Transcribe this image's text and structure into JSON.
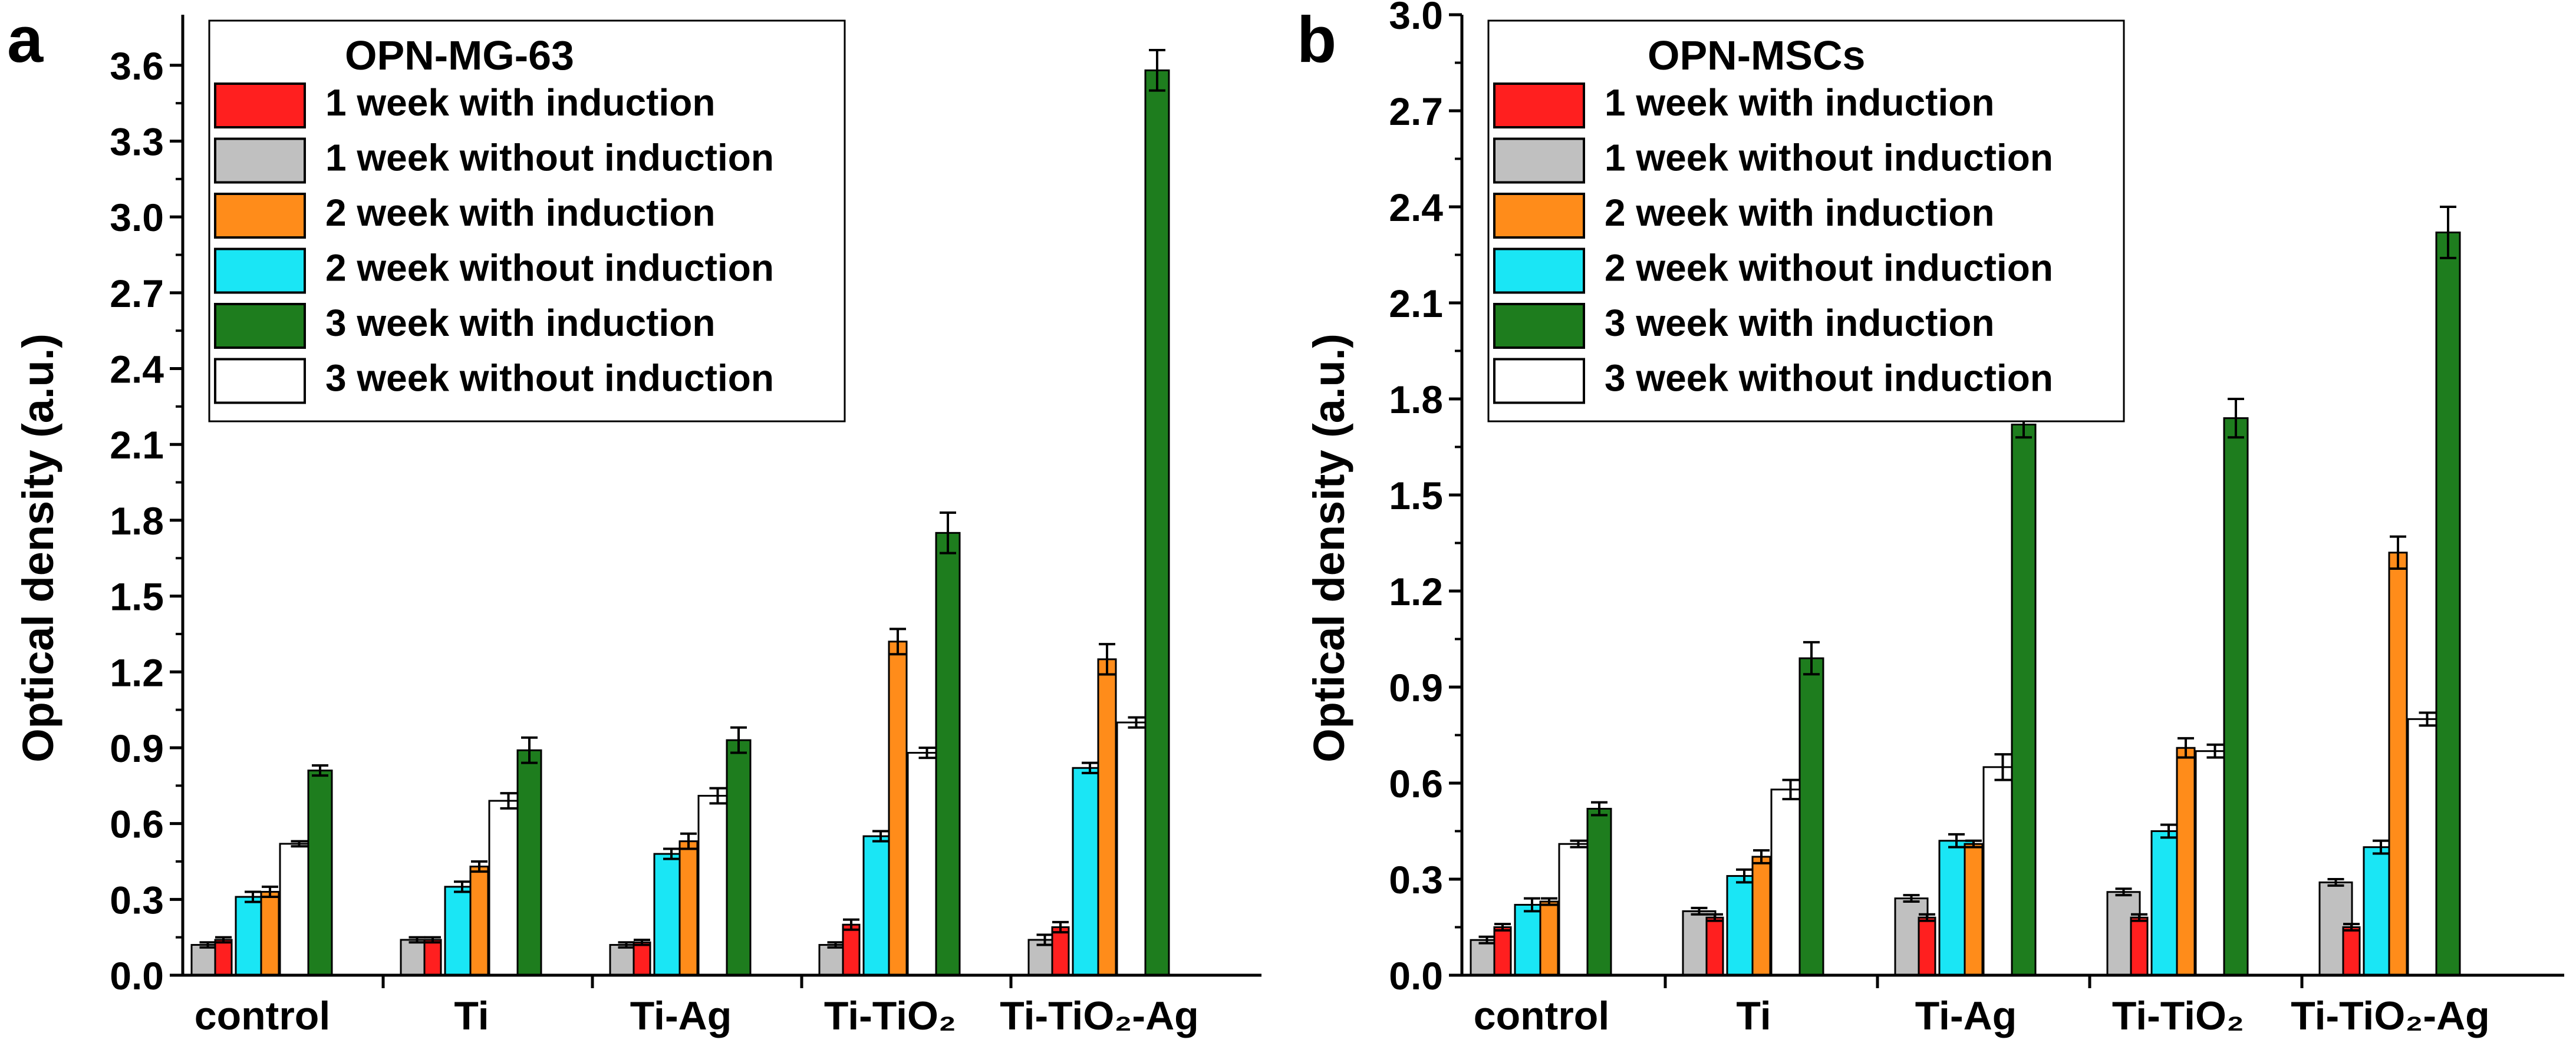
{
  "chart_data": [
    {
      "panel_label": "a",
      "type": "bar",
      "title": "OPN-MG-63",
      "ylabel": "Optical density (a.u.)",
      "xlabel": "",
      "ylim": [
        0,
        3.8
      ],
      "yticks": [
        0.0,
        0.3,
        0.6,
        0.9,
        1.2,
        1.5,
        1.8,
        2.1,
        2.4,
        2.7,
        3.0,
        3.3,
        3.6
      ],
      "tick_labels": [
        "0.0",
        "0.3",
        "0.6",
        "0.9",
        "1.2",
        "1.5",
        "1.8",
        "2.1",
        "2.4",
        "2.7",
        "3.0",
        "3.3",
        "3.6"
      ],
      "categories": [
        "control",
        "Ti",
        "Ti-Ag",
        "Ti-TiO₂",
        "Ti-TiO₂-Ag"
      ],
      "legend_position": "top-left",
      "series": [
        {
          "name": "1 week with induction",
          "color": "#ff1f1f",
          "values": [
            0.14,
            0.14,
            0.13,
            0.2,
            0.19
          ],
          "errors": [
            0.01,
            0.01,
            0.01,
            0.02,
            0.02
          ]
        },
        {
          "name": "1 week without induction",
          "color": "#c0c0c0",
          "values": [
            0.12,
            0.14,
            0.12,
            0.12,
            0.14
          ],
          "errors": [
            0.01,
            0.01,
            0.01,
            0.01,
            0.02
          ]
        },
        {
          "name": "2 week with induction",
          "color": "#ff8c1a",
          "values": [
            0.33,
            0.43,
            0.53,
            1.32,
            1.25
          ],
          "errors": [
            0.02,
            0.02,
            0.03,
            0.05,
            0.06
          ]
        },
        {
          "name": "2 week without induction",
          "color": "#1ae6f5",
          "values": [
            0.31,
            0.35,
            0.48,
            0.55,
            0.82
          ],
          "errors": [
            0.02,
            0.02,
            0.02,
            0.02,
            0.02
          ]
        },
        {
          "name": "3 week with induction",
          "color": "#1e7d1e",
          "values": [
            0.81,
            0.89,
            0.93,
            1.75,
            3.58
          ],
          "errors": [
            0.02,
            0.05,
            0.05,
            0.08,
            0.08
          ]
        },
        {
          "name": "3 week without induction",
          "color": "#ffffff",
          "values": [
            0.52,
            0.69,
            0.71,
            0.88,
            1.0
          ],
          "errors": [
            0.01,
            0.03,
            0.03,
            0.02,
            0.02
          ]
        }
      ]
    },
    {
      "panel_label": "b",
      "type": "bar",
      "title": "OPN-MSCs",
      "ylabel": "Optical density (a.u.)",
      "xlabel": "",
      "ylim": [
        0,
        3.0
      ],
      "yticks": [
        0.0,
        0.3,
        0.6,
        0.9,
        1.2,
        1.5,
        1.8,
        2.1,
        2.4,
        2.7,
        3.0
      ],
      "tick_labels": [
        "0.0",
        "0.3",
        "0.6",
        "0.9",
        "1.2",
        "1.5",
        "1.8",
        "2.1",
        "2.4",
        "2.7",
        "3.0"
      ],
      "categories": [
        "control",
        "Ti",
        "Ti-Ag",
        "Ti-TiO₂",
        "Ti-TiO₂-Ag"
      ],
      "legend_position": "top-left",
      "series": [
        {
          "name": "1 week with induction",
          "color": "#ff1f1f",
          "values": [
            0.15,
            0.18,
            0.18,
            0.18,
            0.15
          ],
          "errors": [
            0.01,
            0.01,
            0.01,
            0.01,
            0.01
          ]
        },
        {
          "name": "1 week without induction",
          "color": "#c0c0c0",
          "values": [
            0.11,
            0.2,
            0.24,
            0.26,
            0.29
          ],
          "errors": [
            0.01,
            0.01,
            0.01,
            0.01,
            0.01
          ]
        },
        {
          "name": "2 week with induction",
          "color": "#ff8c1a",
          "values": [
            0.23,
            0.37,
            0.41,
            0.71,
            1.32
          ],
          "errors": [
            0.01,
            0.02,
            0.01,
            0.03,
            0.05
          ]
        },
        {
          "name": "2 week without induction",
          "color": "#1ae6f5",
          "values": [
            0.22,
            0.31,
            0.42,
            0.45,
            0.4
          ],
          "errors": [
            0.02,
            0.02,
            0.02,
            0.02,
            0.02
          ]
        },
        {
          "name": "3 week with induction",
          "color": "#1e7d1e",
          "values": [
            0.52,
            0.99,
            1.72,
            1.74,
            2.32
          ],
          "errors": [
            0.02,
            0.05,
            0.04,
            0.06,
            0.08
          ]
        },
        {
          "name": "3 week without induction",
          "color": "#ffffff",
          "values": [
            0.41,
            0.58,
            0.65,
            0.7,
            0.8
          ],
          "errors": [
            0.01,
            0.03,
            0.04,
            0.02,
            0.02
          ]
        }
      ]
    }
  ]
}
